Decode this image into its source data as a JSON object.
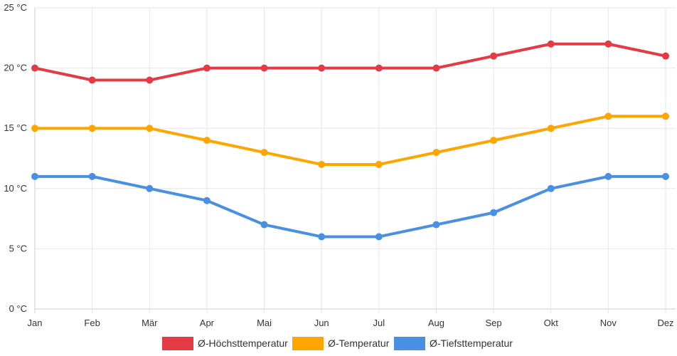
{
  "chart_data": {
    "type": "line",
    "categories": [
      "Jan",
      "Feb",
      "Mär",
      "Apr",
      "Mai",
      "Jun",
      "Jul",
      "Aug",
      "Sep",
      "Okt",
      "Nov",
      "Dez"
    ],
    "series": [
      {
        "name": "Ø-Höchsttemperatur",
        "color": "#e33a45",
        "values": [
          20,
          19,
          19,
          20,
          20,
          20,
          20,
          20,
          21,
          22,
          22,
          21
        ]
      },
      {
        "name": "Ø-Temperatur",
        "color": "#ffa500",
        "values": [
          15,
          15,
          15,
          14,
          13,
          12,
          12,
          13,
          14,
          15,
          16,
          16
        ]
      },
      {
        "name": "Ø-Tiefsttemperatur",
        "color": "#4a90e2",
        "values": [
          11,
          11,
          10,
          9,
          7,
          6,
          6,
          7,
          8,
          10,
          11,
          11
        ]
      }
    ],
    "y_ticks": [
      "0 °C",
      "5 °C",
      "10 °C",
      "15 °C",
      "20 °C",
      "25 °C"
    ],
    "y_tick_values": [
      0,
      5,
      10,
      15,
      20,
      25
    ],
    "ylim": [
      0,
      25
    ],
    "grid": true,
    "legend": "bottom"
  }
}
